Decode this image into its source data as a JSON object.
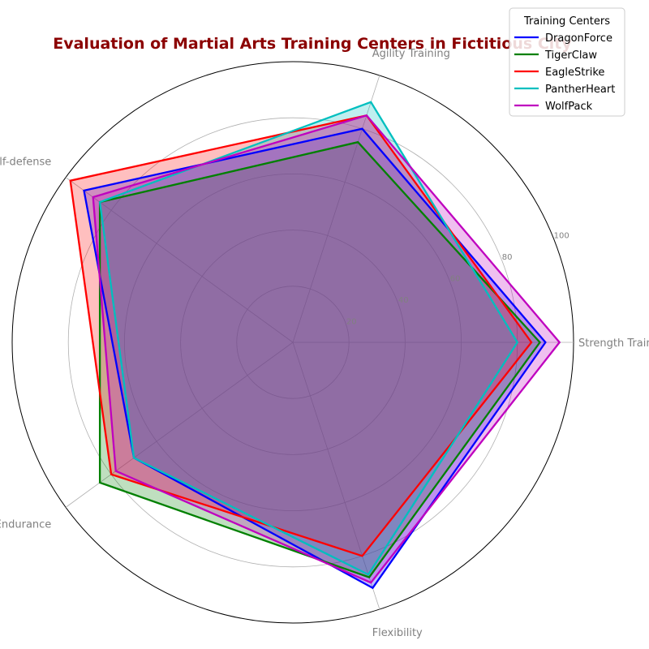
{
  "chart_data": {
    "type": "radar",
    "title": "Evaluation of Martial Arts Training Centers in Fictitious City",
    "categories": [
      "Strength Training",
      "Agility Training",
      "Self-defense",
      "Endurance",
      "Flexibility"
    ],
    "series": [
      {
        "name": "DragonForce",
        "values": [
          90,
          80,
          92,
          70,
          92
        ],
        "color": "#0000ff"
      },
      {
        "name": "TigerClaw",
        "values": [
          88,
          75,
          85,
          85,
          88
        ],
        "color": "#008000"
      },
      {
        "name": "EagleStrike",
        "values": [
          85,
          85,
          98,
          80,
          80
        ],
        "color": "#ff0000"
      },
      {
        "name": "PantherHeart",
        "values": [
          80,
          90,
          85,
          70,
          87
        ],
        "color": "#00bfbf"
      },
      {
        "name": "WolfPack",
        "values": [
          95,
          85,
          88,
          78,
          90
        ],
        "color": "#bf00bf"
      }
    ],
    "rlim": [
      0,
      100
    ],
    "rticks": [
      20,
      40,
      60,
      80,
      100
    ],
    "grid": true,
    "legend": {
      "title": "Training Centers",
      "placement": "top-right"
    }
  }
}
